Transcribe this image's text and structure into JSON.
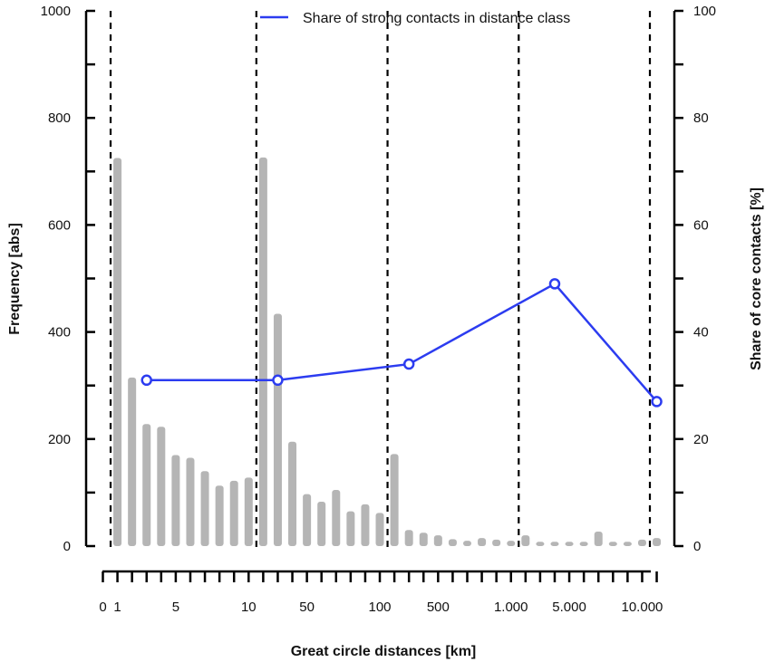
{
  "chart_data": {
    "type": "bar",
    "xlabel": "Great circle distances [km]",
    "ylabel": "Frequency [abs]",
    "ylabel_right": "Share of core contacts [%]",
    "ylim": [
      0,
      1000
    ],
    "ylim_right": [
      0,
      100
    ],
    "yticks": [
      "0",
      "200",
      "400",
      "600",
      "800",
      "1000"
    ],
    "yticks_right": [
      "0",
      "20",
      "40",
      "60",
      "80",
      "100"
    ],
    "x_tick_labels": [
      "0",
      "1",
      "5",
      "10",
      "50",
      "100",
      "500",
      "1.000",
      "5.000",
      "10.000"
    ],
    "x_tick_label_bin": [
      0,
      1,
      5,
      10,
      14,
      19,
      23,
      28,
      32,
      37
    ],
    "bins": 38,
    "class_boundaries_bin": [
      0.5,
      10.5,
      19.5,
      28.5,
      37.5
    ],
    "values": [
      725,
      315,
      228,
      223,
      170,
      165,
      140,
      113,
      122,
      128,
      726,
      434,
      195,
      97,
      83,
      105,
      65,
      78,
      62,
      172,
      30,
      25,
      20,
      13,
      10,
      15,
      12,
      10,
      20,
      8,
      8,
      8,
      8,
      27,
      8,
      8,
      12,
      15
    ],
    "series": [
      {
        "name": "Share of strong contacts in distance class",
        "color": "#2c3cf0",
        "axis": "right",
        "points": [
          {
            "bin": 3,
            "value": 31
          },
          {
            "bin": 12,
            "value": 31
          },
          {
            "bin": 21,
            "value": 34
          },
          {
            "bin": 31,
            "value": 49
          },
          {
            "bin": 38,
            "value": 27
          }
        ]
      }
    ],
    "legend": "top-right",
    "bar_color": "#b5b5b5",
    "grid": false
  }
}
